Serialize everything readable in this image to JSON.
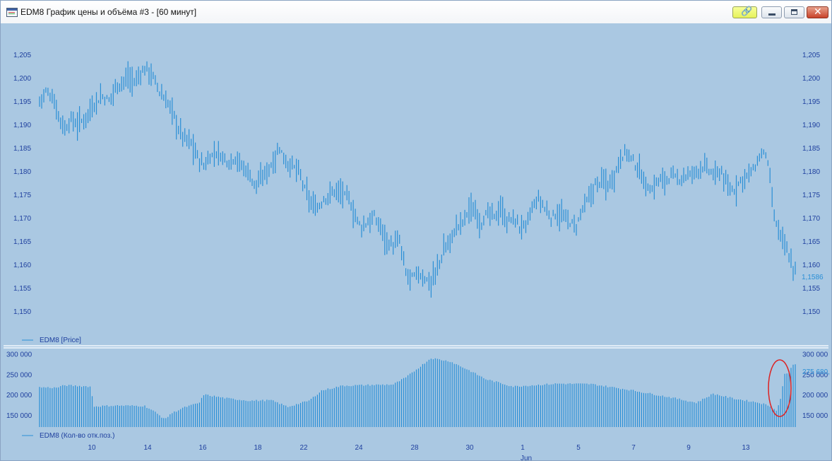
{
  "window": {
    "title": "EDM8 График цены и объёма #3 - [60 минут]",
    "icon": "chart-window-icon",
    "buttons": {
      "link": "link-icon",
      "minimize": "minimize-icon",
      "maximize": "maximize-icon",
      "close": "close-icon"
    }
  },
  "colors": {
    "background": "#aac8e2",
    "series": "#2a8fd6",
    "axis_text": "#1e3f9e",
    "highlight_circle": "#dd2222"
  },
  "chart_data": [
    {
      "type": "ohlc",
      "legend": "EDM8 [Price]",
      "legend_position": "bottom-left",
      "y_ticks": [
        "1,205",
        "1,200",
        "1,195",
        "1,190",
        "1,185",
        "1,180",
        "1,175",
        "1,170",
        "1,165",
        "1,160",
        "1,155",
        "1,150"
      ],
      "ylim": [
        1.148,
        1.208
      ],
      "last_value_label": "1,1586",
      "grid": false,
      "keypoints": [
        [
          0,
          1.195
        ],
        [
          3,
          1.197
        ],
        [
          6,
          1.196
        ],
        [
          9,
          1.192
        ],
        [
          12,
          1.189
        ],
        [
          15,
          1.191
        ],
        [
          18,
          1.19
        ],
        [
          21,
          1.191
        ],
        [
          24,
          1.193
        ],
        [
          27,
          1.195
        ],
        [
          30,
          1.196
        ],
        [
          33,
          1.195
        ],
        [
          36,
          1.198
        ],
        [
          39,
          1.199
        ],
        [
          42,
          1.2
        ],
        [
          45,
          1.199
        ],
        [
          48,
          1.201
        ],
        [
          51,
          1.202
        ],
        [
          54,
          1.2
        ],
        [
          57,
          1.197
        ],
        [
          60,
          1.195
        ],
        [
          63,
          1.193
        ],
        [
          66,
          1.189
        ],
        [
          69,
          1.187
        ],
        [
          72,
          1.186
        ],
        [
          75,
          1.183
        ],
        [
          78,
          1.181
        ],
        [
          81,
          1.183
        ],
        [
          84,
          1.184
        ],
        [
          87,
          1.183
        ],
        [
          90,
          1.182
        ],
        [
          93,
          1.183
        ],
        [
          96,
          1.181
        ],
        [
          99,
          1.18
        ],
        [
          102,
          1.177
        ],
        [
          105,
          1.178
        ],
        [
          108,
          1.18
        ],
        [
          111,
          1.182
        ],
        [
          114,
          1.185
        ],
        [
          117,
          1.182
        ],
        [
          120,
          1.181
        ],
        [
          123,
          1.18
        ],
        [
          126,
          1.176
        ],
        [
          129,
          1.173
        ],
        [
          132,
          1.172
        ],
        [
          135,
          1.174
        ],
        [
          138,
          1.175
        ],
        [
          141,
          1.176
        ],
        [
          144,
          1.175
        ],
        [
          147,
          1.174
        ],
        [
          150,
          1.17
        ],
        [
          153,
          1.168
        ],
        [
          156,
          1.169
        ],
        [
          159,
          1.17
        ],
        [
          162,
          1.168
        ],
        [
          165,
          1.165
        ],
        [
          168,
          1.164
        ],
        [
          171,
          1.165
        ],
        [
          174,
          1.158
        ],
        [
          177,
          1.157
        ],
        [
          180,
          1.158
        ],
        [
          183,
          1.157
        ],
        [
          186,
          1.156
        ],
        [
          189,
          1.159
        ],
        [
          192,
          1.163
        ],
        [
          195,
          1.165
        ],
        [
          198,
          1.168
        ],
        [
          201,
          1.169
        ],
        [
          204,
          1.172
        ],
        [
          207,
          1.171
        ],
        [
          210,
          1.169
        ],
        [
          213,
          1.171
        ],
        [
          216,
          1.17
        ],
        [
          219,
          1.172
        ],
        [
          222,
          1.169
        ],
        [
          225,
          1.17
        ],
        [
          228,
          1.168
        ],
        [
          231,
          1.168
        ],
        [
          234,
          1.172
        ],
        [
          237,
          1.174
        ],
        [
          240,
          1.172
        ],
        [
          243,
          1.17
        ],
        [
          246,
          1.171
        ],
        [
          249,
          1.17
        ],
        [
          252,
          1.169
        ],
        [
          255,
          1.168
        ],
        [
          258,
          1.172
        ],
        [
          261,
          1.174
        ],
        [
          264,
          1.177
        ],
        [
          267,
          1.178
        ],
        [
          270,
          1.177
        ],
        [
          273,
          1.179
        ],
        [
          276,
          1.183
        ],
        [
          279,
          1.184
        ],
        [
          282,
          1.182
        ],
        [
          285,
          1.18
        ],
        [
          288,
          1.177
        ],
        [
          291,
          1.176
        ],
        [
          294,
          1.178
        ],
        [
          297,
          1.178
        ],
        [
          300,
          1.179
        ],
        [
          303,
          1.178
        ],
        [
          306,
          1.179
        ],
        [
          309,
          1.179
        ],
        [
          312,
          1.18
        ],
        [
          315,
          1.181
        ],
        [
          318,
          1.18
        ],
        [
          321,
          1.179
        ],
        [
          324,
          1.18
        ],
        [
          327,
          1.176
        ],
        [
          330,
          1.176
        ],
        [
          333,
          1.178
        ],
        [
          336,
          1.179
        ],
        [
          339,
          1.18
        ],
        [
          342,
          1.183
        ],
        [
          345,
          1.184
        ],
        [
          347,
          1.178
        ],
        [
          349,
          1.17
        ],
        [
          352,
          1.166
        ],
        [
          355,
          1.163
        ],
        [
          358,
          1.159
        ]
      ]
    },
    {
      "type": "bar",
      "legend": "EDM8 (Кол-во отк.поз.)",
      "legend_position": "bottom-left",
      "y_ticks": [
        "300 000",
        "250 000",
        "200 000",
        "150 000"
      ],
      "ylim": [
        120000,
        310000
      ],
      "last_value_label": "275 680,",
      "x_tick_labels": [
        "10",
        "14",
        "16",
        "18",
        "22",
        "24",
        "28",
        "30",
        "1",
        "5",
        "7",
        "9",
        "13"
      ],
      "x_month_label": "Jun",
      "annotation": "red circle around the last bars (open interest spike)",
      "keypoints": [
        [
          0,
          218000
        ],
        [
          8,
          217000
        ],
        [
          12,
          223000
        ],
        [
          24,
          220000
        ],
        [
          26,
          171000
        ],
        [
          36,
          173000
        ],
        [
          50,
          172000
        ],
        [
          54,
          160000
        ],
        [
          58,
          145000
        ],
        [
          60,
          140000
        ],
        [
          62,
          152000
        ],
        [
          68,
          167000
        ],
        [
          76,
          180000
        ],
        [
          78,
          200000
        ],
        [
          90,
          190000
        ],
        [
          100,
          185000
        ],
        [
          110,
          186000
        ],
        [
          118,
          170000
        ],
        [
          128,
          185000
        ],
        [
          134,
          210000
        ],
        [
          144,
          222000
        ],
        [
          168,
          225000
        ],
        [
          174,
          242000
        ],
        [
          186,
          290000
        ],
        [
          195,
          282000
        ],
        [
          204,
          260000
        ],
        [
          212,
          238000
        ],
        [
          225,
          220000
        ],
        [
          246,
          227000
        ],
        [
          262,
          226000
        ],
        [
          280,
          212000
        ],
        [
          300,
          193000
        ],
        [
          312,
          180000
        ],
        [
          320,
          202000
        ],
        [
          330,
          190000
        ],
        [
          342,
          180000
        ],
        [
          347,
          172000
        ],
        [
          350,
          160000
        ],
        [
          352,
          190000
        ],
        [
          354,
          250000
        ],
        [
          356,
          258000
        ],
        [
          358,
          275680
        ]
      ]
    }
  ]
}
